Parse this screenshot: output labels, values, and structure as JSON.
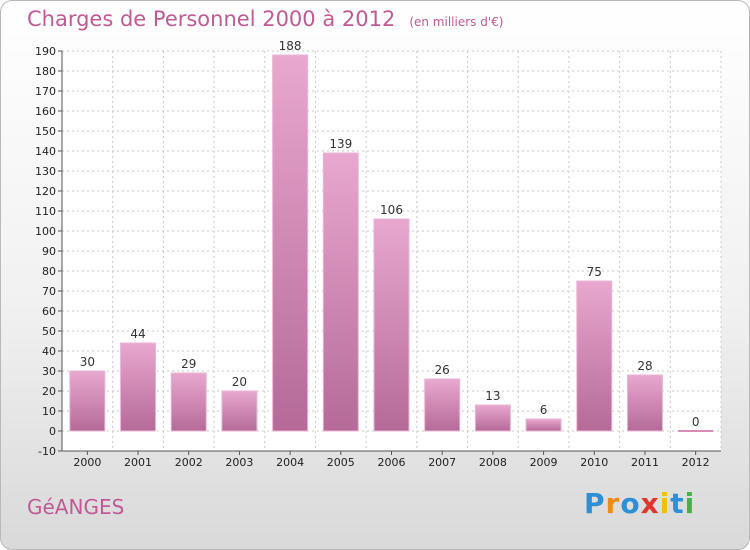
{
  "chart_data": {
    "type": "bar",
    "title": "Charges de Personnel 2000 à 2012",
    "subtitle": "(en milliers d'€)",
    "categories": [
      "2000",
      "2001",
      "2002",
      "2003",
      "2004",
      "2005",
      "2006",
      "2007",
      "2008",
      "2009",
      "2010",
      "2011",
      "2012"
    ],
    "values": [
      30,
      44,
      29,
      20,
      188,
      139,
      106,
      26,
      13,
      6,
      75,
      28,
      0
    ],
    "ylim": [
      -10,
      190
    ],
    "yticks": [
      -10,
      0,
      10,
      20,
      30,
      40,
      50,
      60,
      70,
      80,
      90,
      100,
      110,
      120,
      130,
      140,
      150,
      160,
      170,
      180,
      190
    ],
    "grid": true,
    "bar_color": "#d98bb8"
  },
  "commune": "GéANGES",
  "brand": {
    "letters": [
      "P",
      "r",
      "o",
      "x",
      "i",
      "t",
      "i"
    ],
    "colors": [
      "#2f8fd6",
      "#f08a1c",
      "#2f8fd6",
      "#e2342b",
      "#f5c000",
      "#2f8fd6",
      "#47b04a"
    ]
  }
}
